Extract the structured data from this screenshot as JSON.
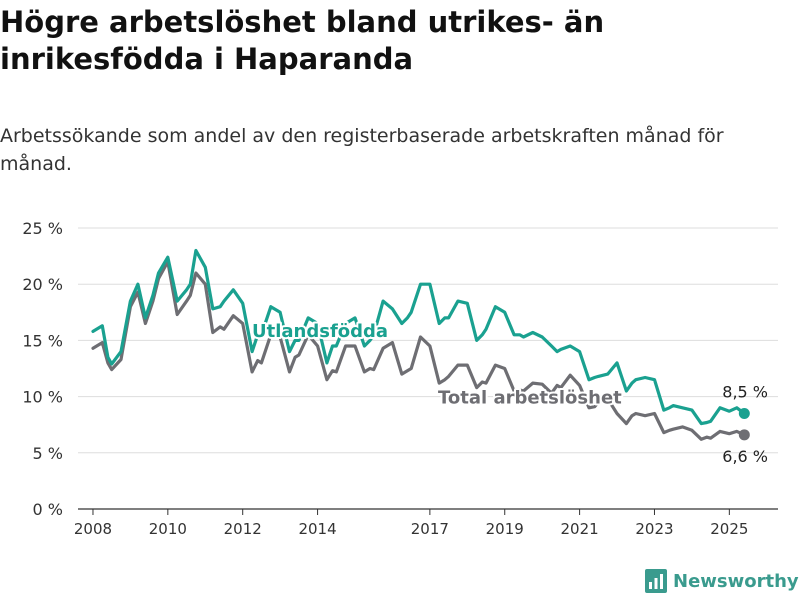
{
  "title": "Högre arbetslöshet bland utrikes- än inrikesfödda i Haparanda",
  "subtitle": "Arbetssökande som andel av den registerbaserade arbetskraften månad för månad.",
  "brand": {
    "name": "Newsworthy",
    "icon": "newsworthy-logo-icon"
  },
  "chart_data": {
    "type": "line",
    "ylim": [
      0,
      25
    ],
    "yticks": [
      {
        "value": 0,
        "label": "0 %"
      },
      {
        "value": 5,
        "label": "5 %"
      },
      {
        "value": 10,
        "label": "10 %"
      },
      {
        "value": 15,
        "label": "15 %"
      },
      {
        "value": 20,
        "label": "20 %"
      },
      {
        "value": 25,
        "label": "25 %"
      }
    ],
    "xlim": [
      2007.6,
      2026.3
    ],
    "xticks": [
      {
        "value": 2008,
        "label": "2008"
      },
      {
        "value": 2010,
        "label": "2010"
      },
      {
        "value": 2012,
        "label": "2012"
      },
      {
        "value": 2014,
        "label": "2014"
      },
      {
        "value": 2017,
        "label": "2017"
      },
      {
        "value": 2019,
        "label": "2019"
      },
      {
        "value": 2021,
        "label": "2021"
      },
      {
        "value": 2023,
        "label": "2023"
      },
      {
        "value": 2025,
        "label": "2025"
      }
    ],
    "grid": true,
    "series": [
      {
        "name": "Total arbetslöshet",
        "color": "#6e6e73",
        "end_label": "6,6 %",
        "x": [
          2008.0,
          2008.25,
          2008.4,
          2008.5,
          2008.75,
          2009.0,
          2009.2,
          2009.4,
          2009.6,
          2009.75,
          2010.0,
          2010.25,
          2010.5,
          2010.6,
          2010.75,
          2011.0,
          2011.2,
          2011.4,
          2011.5,
          2011.75,
          2012.0,
          2012.25,
          2012.4,
          2012.5,
          2012.75,
          2013.0,
          2013.25,
          2013.4,
          2013.5,
          2013.75,
          2014.0,
          2014.25,
          2014.4,
          2014.5,
          2014.75,
          2015.0,
          2015.25,
          2015.4,
          2015.5,
          2015.75,
          2016.0,
          2016.25,
          2016.4,
          2016.5,
          2016.75,
          2017.0,
          2017.25,
          2017.4,
          2017.5,
          2017.75,
          2018.0,
          2018.25,
          2018.4,
          2018.5,
          2018.75,
          2019.0,
          2019.25,
          2019.4,
          2019.5,
          2019.75,
          2020.0,
          2020.25,
          2020.4,
          2020.5,
          2020.75,
          2021.0,
          2021.25,
          2021.4,
          2021.5,
          2021.75,
          2022.0,
          2022.25,
          2022.4,
          2022.5,
          2022.75,
          2023.0,
          2023.25,
          2023.4,
          2023.5,
          2023.75,
          2024.0,
          2024.25,
          2024.4,
          2024.5,
          2024.75,
          2025.0,
          2025.2,
          2025.4
        ],
        "y": [
          14.3,
          14.8,
          13.0,
          12.4,
          13.3,
          18.0,
          19.3,
          16.5,
          18.5,
          20.5,
          22.0,
          17.3,
          18.5,
          19.0,
          21.0,
          20.0,
          15.7,
          16.2,
          16.0,
          17.2,
          16.5,
          12.2,
          13.2,
          13.0,
          15.5,
          15.3,
          12.2,
          13.5,
          13.7,
          15.5,
          14.5,
          11.5,
          12.3,
          12.2,
          14.5,
          14.5,
          12.2,
          12.5,
          12.4,
          14.3,
          14.8,
          12.0,
          12.3,
          12.5,
          15.3,
          14.5,
          11.2,
          11.5,
          11.8,
          12.8,
          12.8,
          10.8,
          11.3,
          11.2,
          12.8,
          12.5,
          10.5,
          10.6,
          10.5,
          11.2,
          11.1,
          10.3,
          11.0,
          10.8,
          11.9,
          11.0,
          9.0,
          9.1,
          9.5,
          9.8,
          8.5,
          7.6,
          8.3,
          8.5,
          8.3,
          8.5,
          6.8,
          7.0,
          7.1,
          7.3,
          7.0,
          6.2,
          6.4,
          6.3,
          6.9,
          6.7,
          6.9,
          6.6
        ]
      },
      {
        "name": "Utlandsfödda",
        "color": "#1aa190",
        "end_label": "8,5 %",
        "x": [
          2008.0,
          2008.25,
          2008.4,
          2008.5,
          2008.75,
          2009.0,
          2009.2,
          2009.4,
          2009.6,
          2009.75,
          2010.0,
          2010.25,
          2010.5,
          2010.6,
          2010.75,
          2011.0,
          2011.2,
          2011.4,
          2011.5,
          2011.75,
          2012.0,
          2012.25,
          2012.4,
          2012.5,
          2012.75,
          2013.0,
          2013.25,
          2013.4,
          2013.5,
          2013.75,
          2014.0,
          2014.25,
          2014.4,
          2014.5,
          2014.75,
          2015.0,
          2015.25,
          2015.4,
          2015.5,
          2015.75,
          2016.0,
          2016.25,
          2016.4,
          2016.5,
          2016.75,
          2017.0,
          2017.25,
          2017.4,
          2017.5,
          2017.75,
          2018.0,
          2018.25,
          2018.4,
          2018.5,
          2018.75,
          2019.0,
          2019.25,
          2019.4,
          2019.5,
          2019.75,
          2020.0,
          2020.25,
          2020.4,
          2020.5,
          2020.75,
          2021.0,
          2021.25,
          2021.4,
          2021.5,
          2021.75,
          2022.0,
          2022.25,
          2022.4,
          2022.5,
          2022.75,
          2023.0,
          2023.25,
          2023.4,
          2023.5,
          2023.75,
          2024.0,
          2024.25,
          2024.4,
          2024.5,
          2024.75,
          2025.0,
          2025.2,
          2025.4
        ],
        "y": [
          15.8,
          16.3,
          13.5,
          12.9,
          14.0,
          18.5,
          20.0,
          17.0,
          19.0,
          21.0,
          22.4,
          18.5,
          19.5,
          20.0,
          23.0,
          21.5,
          17.8,
          18.0,
          18.5,
          19.5,
          18.3,
          14.0,
          15.5,
          15.5,
          18.0,
          17.5,
          14.0,
          15.0,
          15.0,
          17.0,
          16.5,
          13.0,
          14.5,
          14.5,
          16.5,
          17.0,
          14.5,
          15.0,
          15.5,
          18.5,
          17.8,
          16.5,
          17.0,
          17.5,
          20.0,
          20.0,
          16.5,
          17.0,
          17.0,
          18.5,
          18.3,
          15.0,
          15.5,
          16.0,
          18.0,
          17.5,
          15.5,
          15.5,
          15.3,
          15.7,
          15.3,
          14.5,
          14.0,
          14.2,
          14.5,
          14.0,
          11.5,
          11.7,
          11.8,
          12.0,
          13.0,
          10.5,
          11.2,
          11.5,
          11.7,
          11.5,
          8.8,
          9.0,
          9.2,
          9.0,
          8.8,
          7.6,
          7.7,
          7.8,
          9.0,
          8.7,
          9.0,
          8.5
        ]
      }
    ],
    "annotations": [
      {
        "text": "Utlandsfödda",
        "series": "Utlandsfödda"
      },
      {
        "text": "Total arbetslöshet",
        "series": "Total arbetslöshet"
      }
    ]
  }
}
